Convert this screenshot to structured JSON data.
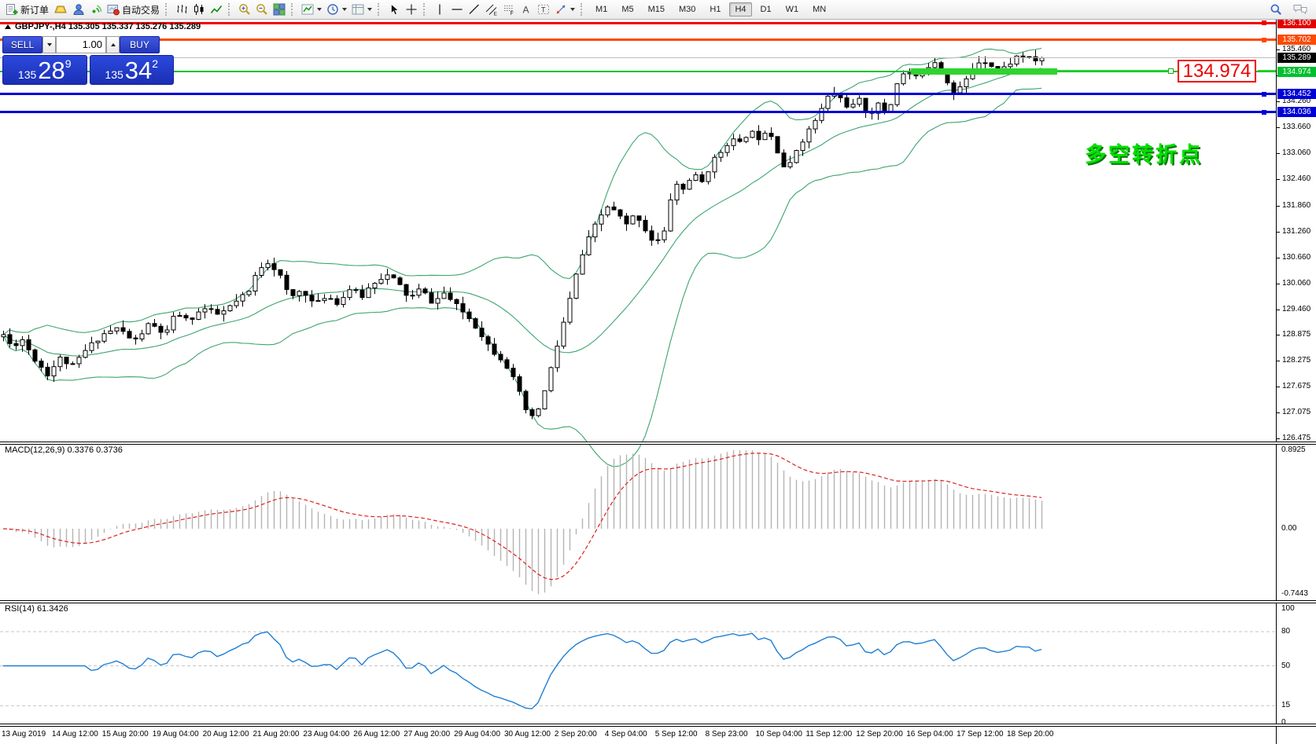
{
  "toolbar": {
    "new_order_label": "新订单",
    "autotrade_label": "自动交易",
    "groups": [
      {
        "items": [
          {
            "icon": "new-order-icon",
            "name": "new-order",
            "label_key": "new_order_label"
          },
          {
            "icon": "gold-icon",
            "name": "gold"
          },
          {
            "icon": "community-icon",
            "name": "community"
          },
          {
            "icon": "signal-icon",
            "name": "market-signal"
          },
          {
            "icon": "autotrade-icon",
            "name": "autotrade",
            "label_key": "autotrade_label"
          }
        ]
      },
      {
        "items": [
          {
            "icon": "bars-chart-icon",
            "name": "bars-chart"
          },
          {
            "icon": "candles-chart-icon",
            "name": "candles-chart"
          },
          {
            "icon": "line-chart-icon",
            "name": "line-chart"
          }
        ]
      },
      {
        "items": [
          {
            "icon": "zoom-in-icon",
            "name": "zoom-in"
          },
          {
            "icon": "zoom-out-icon",
            "name": "zoom-out"
          },
          {
            "icon": "tile-windows-icon",
            "name": "tile-windows"
          }
        ]
      },
      {
        "items": [
          {
            "icon": "indicators-icon",
            "name": "indicators",
            "caret": true
          },
          {
            "icon": "periods-icon",
            "name": "periods",
            "caret": true
          },
          {
            "icon": "template-icon",
            "name": "templates",
            "caret": true
          }
        ]
      },
      {
        "items": [
          {
            "icon": "cursor-icon",
            "name": "cursor"
          },
          {
            "icon": "crosshair-icon",
            "name": "crosshair"
          }
        ]
      },
      {
        "items": [
          {
            "icon": "vline-icon",
            "name": "vertical-line"
          },
          {
            "icon": "hline-icon",
            "name": "horizontal-line"
          },
          {
            "icon": "trendline-icon",
            "name": "trendline"
          },
          {
            "icon": "channel-icon",
            "name": "equidistant-channel"
          },
          {
            "icon": "fibonacci-icon",
            "name": "fibonacci"
          },
          {
            "icon": "text-icon",
            "name": "text"
          },
          {
            "icon": "label-icon",
            "name": "text-label"
          },
          {
            "icon": "arrows-icon",
            "name": "arrows",
            "caret": true
          }
        ]
      }
    ],
    "timeframes": [
      "M1",
      "M5",
      "M15",
      "M30",
      "H1",
      "H4",
      "D1",
      "W1",
      "MN"
    ],
    "active_timeframe": "H4",
    "right_icons": [
      {
        "icon": "search-icon",
        "name": "search"
      },
      {
        "icon": "chat-icon",
        "name": "chat"
      }
    ]
  },
  "chart": {
    "symbol_header": "GBPJPY-,H4  135.305 135.337 135.276 135.289"
  },
  "trade_panel": {
    "sell_label": "SELL",
    "buy_label": "BUY",
    "volume": "1.00",
    "sell_price": {
      "prefix": "135",
      "big": "28",
      "sup": "9"
    },
    "buy_price": {
      "prefix": "135",
      "big": "34",
      "sup": "2"
    }
  },
  "indicators": {
    "macd": {
      "label": "MACD(12,26,9) 0.3376 0.3736",
      "axis": [
        {
          "label": "0.8925",
          "value": 0.8925
        },
        {
          "label": "0.00",
          "value": 0
        },
        {
          "label": "-0.7443",
          "value": -0.7443
        }
      ]
    },
    "rsi": {
      "label": "RSI(14) 61.3426",
      "axis": [
        {
          "label": "100",
          "value": 100
        },
        {
          "label": "80",
          "value": 80
        },
        {
          "label": "50",
          "value": 50
        },
        {
          "label": "15",
          "value": 15
        },
        {
          "label": "0",
          "value": 0
        }
      ],
      "levels": [
        80,
        50,
        15
      ]
    }
  },
  "price_axis": {
    "ticks": [
      {
        "label": "135.460",
        "price": 135.46
      },
      {
        "label": "134.860",
        "price": 134.86
      },
      {
        "label": "134.260",
        "price": 134.26
      },
      {
        "label": "133.660",
        "price": 133.66
      },
      {
        "label": "133.060",
        "price": 133.06
      },
      {
        "label": "132.460",
        "price": 132.46
      },
      {
        "label": "131.860",
        "price": 131.86
      },
      {
        "label": "131.260",
        "price": 131.26
      },
      {
        "label": "130.660",
        "price": 130.66
      },
      {
        "label": "130.060",
        "price": 130.06
      },
      {
        "label": "129.460",
        "price": 129.46
      },
      {
        "label": "128.875",
        "price": 128.875
      },
      {
        "label": "128.275",
        "price": 128.275
      },
      {
        "label": "127.675",
        "price": 127.675
      },
      {
        "label": "127.075",
        "price": 127.075
      },
      {
        "label": "126.475",
        "price": 126.475
      }
    ],
    "badges": [
      {
        "label": "136.100",
        "price": 136.1,
        "bg": "#e30000"
      },
      {
        "label": "135.702",
        "price": 135.702,
        "bg": "#ff4a00"
      },
      {
        "label": "135.289",
        "price": 135.289,
        "bg": "#000000"
      },
      {
        "label": "134.974",
        "price": 134.974,
        "bg": "#00c02e"
      },
      {
        "label": "134.452",
        "price": 134.452,
        "bg": "#0000d8"
      },
      {
        "label": "134.036",
        "price": 134.036,
        "bg": "#0000d8"
      }
    ]
  },
  "hlines": [
    {
      "price": 136.1,
      "color": "#ef0000",
      "height": 3,
      "marker": true
    },
    {
      "price": 135.702,
      "color": "#ff4a00",
      "height": 3,
      "marker": true
    },
    {
      "price": 135.289,
      "color": "#bdbdbd",
      "height": 1,
      "marker": false
    },
    {
      "price": 134.974,
      "color": "#00c02e",
      "height": 2,
      "marker": false
    },
    {
      "price": 134.452,
      "color": "#0000d8",
      "height": 3,
      "marker": true
    },
    {
      "price": 134.036,
      "color": "#0000d8",
      "height": 3,
      "marker": true
    }
  ],
  "annotations": {
    "price_tag": {
      "text": "134.974",
      "color": "#ee0000"
    },
    "note": {
      "text": "多空转折点",
      "color": "#00e100"
    },
    "turn_bar_color": "#2fd32f"
  },
  "date_axis": {
    "labels": [
      "13 Aug 2019",
      "14 Aug 12:00",
      "15 Aug 20:00",
      "19 Aug 04:00",
      "20 Aug 12:00",
      "21 Aug 20:00",
      "23 Aug 04:00",
      "26 Aug 12:00",
      "27 Aug 20:00",
      "29 Aug 04:00",
      "30 Aug 12:00",
      "2 Sep 20:00",
      "4 Sep 04:00",
      "5 Sep 12:00",
      "8 Sep 23:00",
      "10 Sep 04:00",
      "11 Sep 12:00",
      "12 Sep 20:00",
      "16 Sep 04:00",
      "17 Sep 12:00",
      "18 Sep 20:00"
    ]
  },
  "chart_data": {
    "type": "candlestick",
    "symbol": "GBPJPY-",
    "timeframe": "H4",
    "ohlc_current": {
      "open": 135.305,
      "high": 135.337,
      "low": 135.276,
      "close": 135.289
    },
    "y_axis": {
      "min": 126.475,
      "max": 136.1
    },
    "horizontal_levels": [
      136.1,
      135.702,
      134.974,
      134.452,
      134.036
    ],
    "bollinger": {
      "period": 20,
      "deviation": 2,
      "color": "#3da56f"
    },
    "macd": {
      "fast": 12,
      "slow": 26,
      "signal": 9,
      "current": 0.3376,
      "current_signal": 0.3736,
      "range": [
        -0.7443,
        0.8925
      ]
    },
    "rsi": {
      "period": 14,
      "current": 61.3426,
      "levels": [
        80,
        50,
        15
      ],
      "range": [
        0,
        100
      ]
    },
    "price_path_anchors": [
      [
        0,
        129.0
      ],
      [
        14,
        128.62
      ],
      [
        28,
        128.78
      ],
      [
        44,
        128.32
      ],
      [
        60,
        127.98
      ],
      [
        76,
        128.34
      ],
      [
        92,
        128.16
      ],
      [
        110,
        128.56
      ],
      [
        130,
        128.9
      ],
      [
        150,
        129.05
      ],
      [
        170,
        128.72
      ],
      [
        190,
        129.15
      ],
      [
        210,
        128.88
      ],
      [
        224,
        129.42
      ],
      [
        238,
        129.2
      ],
      [
        258,
        129.5
      ],
      [
        278,
        129.34
      ],
      [
        298,
        129.62
      ],
      [
        316,
        129.88
      ],
      [
        328,
        130.42
      ],
      [
        340,
        130.58
      ],
      [
        354,
        130.32
      ],
      [
        368,
        129.72
      ],
      [
        384,
        129.95
      ],
      [
        400,
        129.56
      ],
      [
        414,
        129.8
      ],
      [
        430,
        129.62
      ],
      [
        444,
        129.95
      ],
      [
        460,
        129.78
      ],
      [
        474,
        130.1
      ],
      [
        490,
        130.28
      ],
      [
        504,
        130.12
      ],
      [
        520,
        129.72
      ],
      [
        534,
        129.95
      ],
      [
        550,
        129.62
      ],
      [
        564,
        129.85
      ],
      [
        580,
        129.55
      ],
      [
        594,
        129.32
      ],
      [
        610,
        128.95
      ],
      [
        624,
        128.55
      ],
      [
        640,
        128.3
      ],
      [
        654,
        127.8
      ],
      [
        668,
        127.15
      ],
      [
        678,
        126.92
      ],
      [
        690,
        127.45
      ],
      [
        700,
        128.1
      ],
      [
        712,
        128.9
      ],
      [
        724,
        129.7
      ],
      [
        736,
        130.55
      ],
      [
        748,
        131.1
      ],
      [
        760,
        131.55
      ],
      [
        772,
        131.85
      ],
      [
        784,
        131.7
      ],
      [
        796,
        131.42
      ],
      [
        808,
        131.7
      ],
      [
        820,
        131.32
      ],
      [
        832,
        130.98
      ],
      [
        844,
        131.25
      ],
      [
        856,
        132.42
      ],
      [
        868,
        132.25
      ],
      [
        880,
        132.6
      ],
      [
        892,
        132.42
      ],
      [
        904,
        132.85
      ],
      [
        916,
        133.12
      ],
      [
        928,
        133.42
      ],
      [
        940,
        133.3
      ],
      [
        952,
        133.6
      ],
      [
        964,
        133.45
      ],
      [
        976,
        133.68
      ],
      [
        988,
        133.15
      ],
      [
        1000,
        132.6
      ],
      [
        1008,
        133.05
      ],
      [
        1020,
        133.4
      ],
      [
        1032,
        133.72
      ],
      [
        1044,
        134.1
      ],
      [
        1056,
        134.52
      ],
      [
        1068,
        134.35
      ],
      [
        1080,
        134.12
      ],
      [
        1092,
        134.3
      ],
      [
        1104,
        133.98
      ],
      [
        1116,
        134.2
      ],
      [
        1128,
        133.98
      ],
      [
        1140,
        134.72
      ],
      [
        1152,
        135.0
      ],
      [
        1164,
        134.82
      ],
      [
        1176,
        135.05
      ],
      [
        1188,
        135.22
      ],
      [
        1200,
        134.9
      ],
      [
        1212,
        134.48
      ],
      [
        1224,
        134.65
      ],
      [
        1236,
        135.05
      ],
      [
        1248,
        135.28
      ],
      [
        1260,
        135.12
      ],
      [
        1272,
        135.0
      ],
      [
        1284,
        135.18
      ],
      [
        1296,
        135.38
      ],
      [
        1308,
        135.26
      ],
      [
        1320,
        135.22
      ],
      [
        1328,
        135.289
      ]
    ]
  }
}
